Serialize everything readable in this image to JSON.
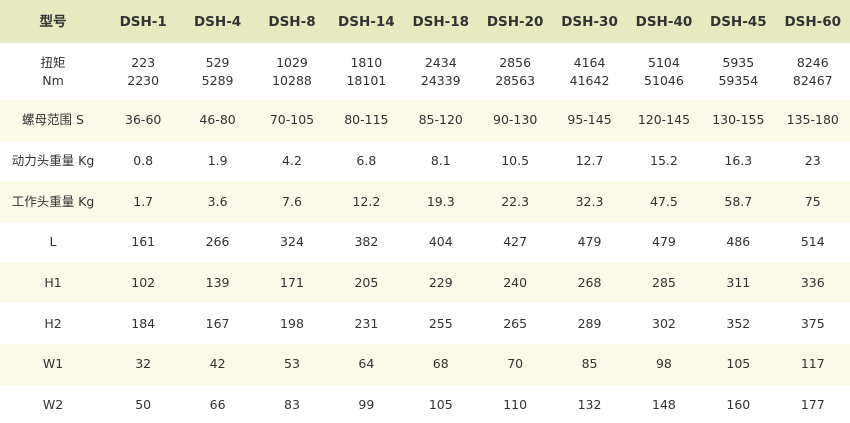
{
  "table": {
    "header": [
      "型号",
      "DSH-1",
      "DSH-4",
      "DSH-8",
      "DSH-14",
      "DSH-18",
      "DSH-20",
      "DSH-30",
      "DSH-40",
      "DSH-45",
      "DSH-60"
    ],
    "rows": [
      [
        [
          "扭矩",
          "Nm"
        ],
        [
          "223",
          "2230"
        ],
        [
          "529",
          "5289"
        ],
        [
          "1029",
          "10288"
        ],
        [
          "1810",
          "18101"
        ],
        [
          "2434",
          "24339"
        ],
        [
          "2856",
          "28563"
        ],
        [
          "4164",
          "41642"
        ],
        [
          "5104",
          "51046"
        ],
        [
          "5935",
          "59354"
        ],
        [
          "8246",
          "82467"
        ]
      ],
      [
        "螺母范围 S",
        "36-60",
        "46-80",
        "70-105",
        "80-115",
        "85-120",
        "90-130",
        "95-145",
        "120-145",
        "130-155",
        "135-180"
      ],
      [
        "动力头重量 Kg",
        "0.8",
        "1.9",
        "4.2",
        "6.8",
        "8.1",
        "10.5",
        "12.7",
        "15.2",
        "16.3",
        "23"
      ],
      [
        "工作头重量 Kg",
        "1.7",
        "3.6",
        "7.6",
        "12.2",
        "19.3",
        "22.3",
        "32.3",
        "47.5",
        "58.7",
        "75"
      ],
      [
        "L",
        "161",
        "266",
        "324",
        "382",
        "404",
        "427",
        "479",
        "479",
        "486",
        "514"
      ],
      [
        "H1",
        "102",
        "139",
        "171",
        "205",
        "229",
        "240",
        "268",
        "285",
        "311",
        "336"
      ],
      [
        "H2",
        "184",
        "167",
        "198",
        "231",
        "255",
        "265",
        "289",
        "302",
        "352",
        "375"
      ],
      [
        "W1",
        "32",
        "42",
        "53",
        "64",
        "68",
        "70",
        "85",
        "98",
        "105",
        "117"
      ],
      [
        "W2",
        "50",
        "66",
        "83",
        "99",
        "105",
        "110",
        "132",
        "148",
        "160",
        "177"
      ]
    ]
  }
}
